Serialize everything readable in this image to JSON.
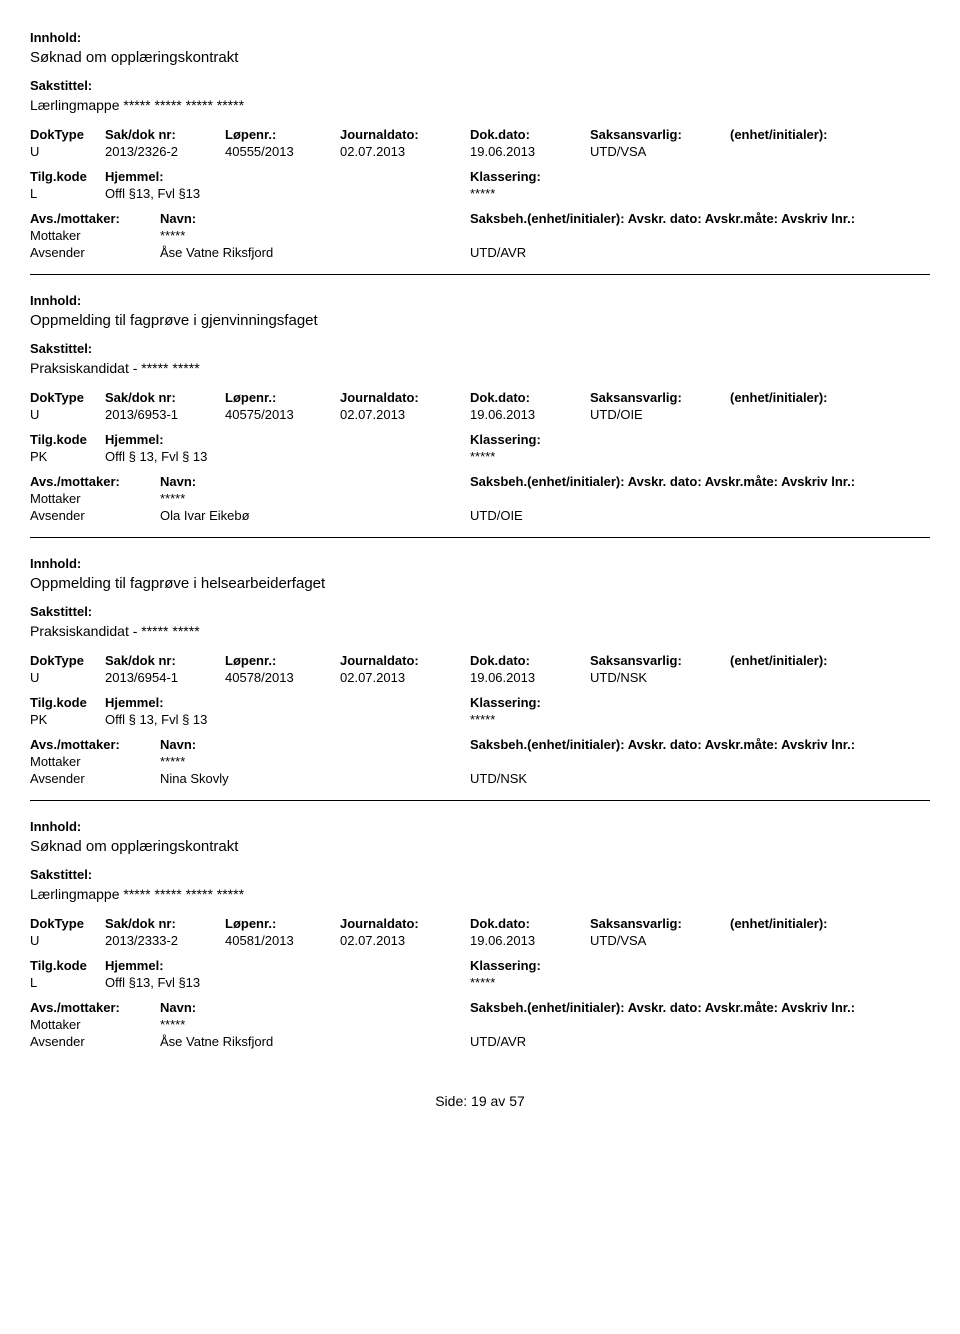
{
  "labels": {
    "innhold": "Innhold:",
    "sakstittel": "Sakstittel:",
    "doktype": "DokType",
    "sakdoknr": "Sak/dok nr:",
    "lopenr": "Løpenr.:",
    "journaldato": "Journaldato:",
    "dokdato": "Dok.dato:",
    "saksansvarlig": "Saksansvarlig:",
    "enhet": "(enhet/initialer):",
    "tilgkode": "Tilg.kode",
    "hjemmel": "Hjemmel:",
    "klassering": "Klassering:",
    "avsmottaker": "Avs./mottaker:",
    "navn": "Navn:",
    "saksbeh": "Saksbeh.(enhet/initialer): Avskr. dato:  Avskr.måte:  Avskriv lnr.:",
    "mottaker": "Mottaker",
    "avsender": "Avsender",
    "side": "Side:",
    "page": "19",
    "av": "av",
    "total": "57"
  },
  "entries": [
    {
      "innhold": "Søknad om opplæringskontrakt",
      "sakstittel": "Lærlingmappe ***** ***** ***** *****",
      "doktype": "U",
      "sakdoknr": "2013/2326-2",
      "lopenr": "40555/2013",
      "journaldato": "02.07.2013",
      "dokdato": "19.06.2013",
      "saksansvarlig": "UTD/VSA",
      "tilgkode": "L",
      "hjemmel": "Offl §13, Fvl §13",
      "klassering": "*****",
      "mottaker_navn": "*****",
      "avsender_navn": "Åse Vatne Riksfjord",
      "avsender_enhet": "UTD/AVR"
    },
    {
      "innhold": "Oppmelding til fagprøve i gjenvinningsfaget",
      "sakstittel": "Praksiskandidat - ***** *****",
      "doktype": "U",
      "sakdoknr": "2013/6953-1",
      "lopenr": "40575/2013",
      "journaldato": "02.07.2013",
      "dokdato": "19.06.2013",
      "saksansvarlig": "UTD/OIE",
      "tilgkode": "PK",
      "hjemmel": "Offl § 13, Fvl § 13",
      "klassering": "*****",
      "mottaker_navn": "*****",
      "avsender_navn": "Ola Ivar Eikebø",
      "avsender_enhet": "UTD/OIE"
    },
    {
      "innhold": "Oppmelding til fagprøve i helsearbeiderfaget",
      "sakstittel": "Praksiskandidat - ***** *****",
      "doktype": "U",
      "sakdoknr": "2013/6954-1",
      "lopenr": "40578/2013",
      "journaldato": "02.07.2013",
      "dokdato": "19.06.2013",
      "saksansvarlig": "UTD/NSK",
      "tilgkode": "PK",
      "hjemmel": "Offl § 13, Fvl § 13",
      "klassering": "*****",
      "mottaker_navn": "*****",
      "avsender_navn": "Nina Skovly",
      "avsender_enhet": "UTD/NSK"
    },
    {
      "innhold": "Søknad om opplæringskontrakt",
      "sakstittel": "Lærlingmappe ***** ***** ***** *****",
      "doktype": "U",
      "sakdoknr": "2013/2333-2",
      "lopenr": "40581/2013",
      "journaldato": "02.07.2013",
      "dokdato": "19.06.2013",
      "saksansvarlig": "UTD/VSA",
      "tilgkode": "L",
      "hjemmel": "Offl §13, Fvl §13",
      "klassering": "*****",
      "mottaker_navn": "*****",
      "avsender_navn": "Åse Vatne Riksfjord",
      "avsender_enhet": "UTD/AVR"
    }
  ]
}
